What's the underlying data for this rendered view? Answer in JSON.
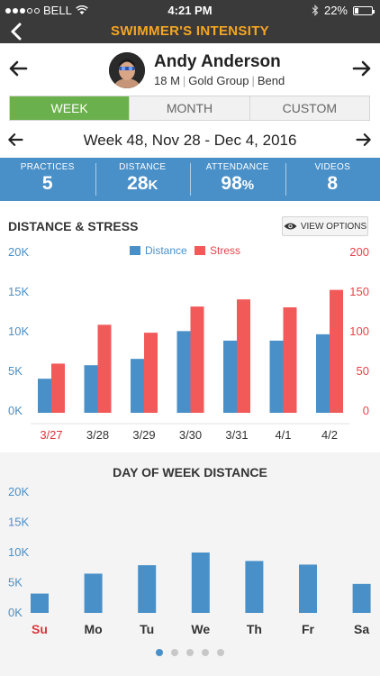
{
  "status_bar": {
    "carrier": "BELL",
    "time": "4:21 PM",
    "battery_text": "22%",
    "battery_level": 0.22
  },
  "nav": {
    "title": "SWIMMER'S INTENSITY"
  },
  "profile": {
    "name": "Andy Anderson",
    "age_gender": "18 M",
    "group": "Gold Group",
    "location": "Bend"
  },
  "tabs": [
    {
      "label": "WEEK",
      "active": true
    },
    {
      "label": "MONTH",
      "active": false
    },
    {
      "label": "CUSTOM",
      "active": false
    }
  ],
  "week_label": "Week 48, Nov 28 - Dec 4, 2016",
  "stats": [
    {
      "label": "PRACTICES",
      "value": "5",
      "unit": ""
    },
    {
      "label": "DISTANCE",
      "value": "28",
      "unit": "K"
    },
    {
      "label": "ATTENDANCE",
      "value": "98",
      "unit": "%"
    },
    {
      "label": "VIDEOS",
      "value": "8",
      "unit": ""
    }
  ],
  "distance_stress": {
    "title": "DISTANCE & STRESS",
    "view_options_label": "VIEW OPTIONS"
  },
  "day_of_week": {
    "title": "DAY OF WEEK DISTANCE"
  },
  "colors": {
    "distance": "#4a90c8",
    "stress": "#f25a5a",
    "accent_green": "#6ab04c",
    "title_orange": "#f5a623",
    "axis_left": "#4a90c8",
    "axis_right": "#e8434a",
    "highlight_label": "#d9363e"
  },
  "icons": [
    "back-chevron-icon",
    "arrow-left-icon",
    "arrow-right-icon",
    "eye-icon",
    "wifi-icon",
    "bluetooth-icon",
    "battery-icon"
  ],
  "chart_data": [
    {
      "type": "bar",
      "categories": [
        "3/27",
        "3/28",
        "3/29",
        "3/30",
        "3/31",
        "4/1",
        "4/2"
      ],
      "highlighted_category": "3/27",
      "series": [
        {
          "name": "Distance",
          "axis": "left",
          "values": [
            4300,
            6000,
            6800,
            10300,
            9100,
            9100,
            9900
          ]
        },
        {
          "name": "Stress",
          "axis": "right",
          "values": [
            62,
            111,
            101,
            134,
            143,
            133,
            155
          ]
        }
      ],
      "ylim_left": [
        0,
        20000
      ],
      "ylim_right": [
        0,
        200
      ],
      "left_ticks": [
        "0K",
        "5K",
        "10K",
        "15K",
        "20K"
      ],
      "right_ticks": [
        "0",
        "50",
        "100",
        "150",
        "200"
      ],
      "legend": "top-center",
      "grid": false
    },
    {
      "type": "bar",
      "categories": [
        "Su",
        "Mo",
        "Tu",
        "We",
        "Th",
        "Fr",
        "Sa"
      ],
      "highlighted_category": "Su",
      "series": [
        {
          "name": "Distance",
          "values": [
            3200,
            6500,
            7900,
            10000,
            8600,
            8000,
            4800
          ]
        }
      ],
      "ylim": [
        0,
        20000
      ],
      "y_ticks": [
        "0K",
        "5K",
        "10K",
        "15K",
        "20K"
      ],
      "grid": false
    }
  ],
  "pager": {
    "count": 5,
    "active_index": 0
  }
}
